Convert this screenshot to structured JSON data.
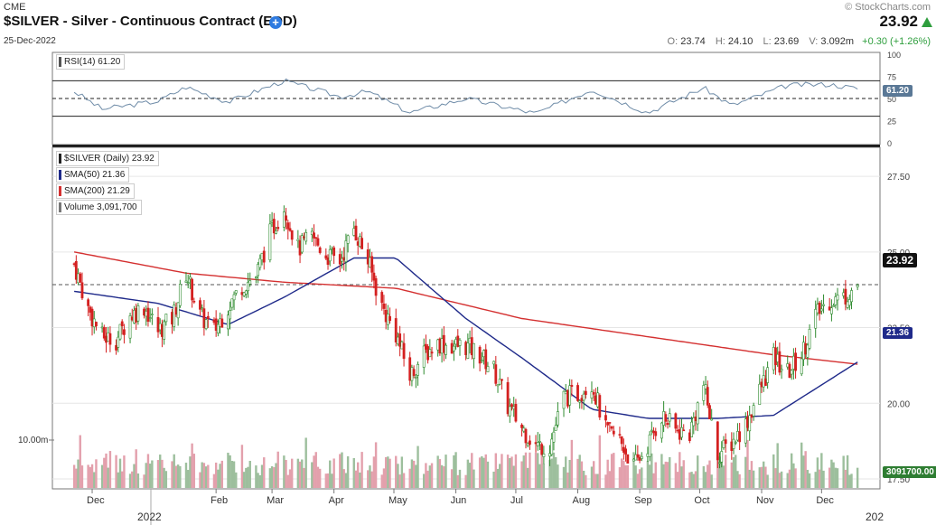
{
  "header": {
    "exchange": "CME",
    "watermark": "© StockCharts.com",
    "title": "$SILVER - Silver - Continuous Contract (EOD)",
    "date": "25-Dec-2022",
    "last_price": "23.92",
    "ohlc": {
      "o_label": "O:",
      "o": "23.74",
      "h_label": "H:",
      "h": "24.10",
      "l_label": "L:",
      "l": "23.69",
      "v_label": "V:",
      "v": "3.092m",
      "change": "+0.30 (+1.26%)"
    }
  },
  "legends": {
    "rsi": "RSI(14) 61.20",
    "price": "$SILVER (Daily) 23.92",
    "sma50": "SMA(50) 21.36",
    "sma200": "SMA(200) 21.29",
    "volume": "Volume 3,091,700"
  },
  "value_boxes": {
    "rsi": "61.20",
    "price": "23.92",
    "sma50": "21.36",
    "volume": "3091700.00"
  },
  "colors": {
    "up": "#2e8b2e",
    "down": "#d42020",
    "sma50": "#1f2a8a",
    "sma200": "#d43030",
    "rsi_line": "#6f8ca8",
    "vol_up": "#9dbf9d",
    "vol_down": "#e3a0ac"
  },
  "chart_data": {
    "type": "candlestick",
    "title": "$SILVER - Silver - Continuous Contract (EOD)",
    "price_axis": {
      "ticks": [
        17.5,
        20.0,
        22.5,
        25.0,
        27.5
      ],
      "tick_labels": [
        "17.50",
        "20.00",
        "22.50",
        "25.00",
        "27.50"
      ],
      "range": [
        17.2,
        28.4
      ]
    },
    "rsi_axis": {
      "ticks": [
        0,
        25,
        30,
        50,
        70,
        75,
        100
      ],
      "tick_labels": [
        "0",
        "25",
        "",
        "50",
        "",
        "75",
        "100"
      ],
      "overbought": 70,
      "oversold": 30
    },
    "volume_axis": {
      "label": "10.00m"
    },
    "x_axis": {
      "months": [
        "Dec",
        "Feb",
        "Mar",
        "Apr",
        "May",
        "Jun",
        "Jul",
        "Aug",
        "Sep",
        "Oct",
        "Nov",
        "Dec"
      ],
      "years": [
        "2022",
        "202"
      ]
    },
    "series": {
      "close": [
        {
          "date": "2021-11-22",
          "value": 24.6
        },
        {
          "date": "2021-11-29",
          "value": 23.1
        },
        {
          "date": "2021-12-06",
          "value": 22.2
        },
        {
          "date": "2021-12-13",
          "value": 22.1
        },
        {
          "date": "2021-12-20",
          "value": 22.9
        },
        {
          "date": "2021-12-27",
          "value": 23.2
        },
        {
          "date": "2022-01-03",
          "value": 22.4
        },
        {
          "date": "2022-01-10",
          "value": 22.8
        },
        {
          "date": "2022-01-17",
          "value": 24.3
        },
        {
          "date": "2022-01-24",
          "value": 22.9
        },
        {
          "date": "2022-01-31",
          "value": 22.4
        },
        {
          "date": "2022-02-07",
          "value": 23.2
        },
        {
          "date": "2022-02-14",
          "value": 23.9
        },
        {
          "date": "2022-02-21",
          "value": 24.2
        },
        {
          "date": "2022-02-28",
          "value": 25.6
        },
        {
          "date": "2022-03-07",
          "value": 26.5
        },
        {
          "date": "2022-03-14",
          "value": 25.1
        },
        {
          "date": "2022-03-21",
          "value": 25.5
        },
        {
          "date": "2022-03-28",
          "value": 24.9
        },
        {
          "date": "2022-04-04",
          "value": 24.7
        },
        {
          "date": "2022-04-11",
          "value": 25.8
        },
        {
          "date": "2022-04-18",
          "value": 24.7
        },
        {
          "date": "2022-04-25",
          "value": 23.2
        },
        {
          "date": "2022-05-02",
          "value": 22.3
        },
        {
          "date": "2022-05-09",
          "value": 20.9
        },
        {
          "date": "2022-05-16",
          "value": 21.6
        },
        {
          "date": "2022-05-23",
          "value": 22.0
        },
        {
          "date": "2022-05-30",
          "value": 21.9
        },
        {
          "date": "2022-06-06",
          "value": 21.9
        },
        {
          "date": "2022-06-13",
          "value": 21.6
        },
        {
          "date": "2022-06-20",
          "value": 21.1
        },
        {
          "date": "2022-06-27",
          "value": 19.9
        },
        {
          "date": "2022-07-04",
          "value": 19.2
        },
        {
          "date": "2022-07-11",
          "value": 18.6
        },
        {
          "date": "2022-07-18",
          "value": 18.6
        },
        {
          "date": "2022-07-25",
          "value": 20.2
        },
        {
          "date": "2022-08-01",
          "value": 20.3
        },
        {
          "date": "2022-08-08",
          "value": 20.7
        },
        {
          "date": "2022-08-15",
          "value": 19.1
        },
        {
          "date": "2022-08-22",
          "value": 18.8
        },
        {
          "date": "2022-08-29",
          "value": 17.9
        },
        {
          "date": "2022-09-05",
          "value": 18.6
        },
        {
          "date": "2022-09-12",
          "value": 19.6
        },
        {
          "date": "2022-09-19",
          "value": 19.1
        },
        {
          "date": "2022-09-26",
          "value": 19.0
        },
        {
          "date": "2022-10-03",
          "value": 20.6
        },
        {
          "date": "2022-10-10",
          "value": 18.3
        },
        {
          "date": "2022-10-17",
          "value": 18.7
        },
        {
          "date": "2022-10-24",
          "value": 19.3
        },
        {
          "date": "2022-10-31",
          "value": 20.4
        },
        {
          "date": "2022-11-07",
          "value": 21.5
        },
        {
          "date": "2022-11-14",
          "value": 21.0
        },
        {
          "date": "2022-11-21",
          "value": 21.6
        },
        {
          "date": "2022-11-28",
          "value": 22.9
        },
        {
          "date": "2022-12-05",
          "value": 23.4
        },
        {
          "date": "2022-12-12",
          "value": 23.5
        },
        {
          "date": "2022-12-19",
          "value": 23.9
        }
      ],
      "sma50": [
        {
          "date": "2021-11-22",
          "value": 23.7
        },
        {
          "date": "2022-01-03",
          "value": 23.3
        },
        {
          "date": "2022-02-07",
          "value": 22.6
        },
        {
          "date": "2022-03-07",
          "value": 23.5
        },
        {
          "date": "2022-04-11",
          "value": 24.8
        },
        {
          "date": "2022-05-02",
          "value": 24.8
        },
        {
          "date": "2022-06-06",
          "value": 22.8
        },
        {
          "date": "2022-07-04",
          "value": 21.5
        },
        {
          "date": "2022-08-08",
          "value": 19.8
        },
        {
          "date": "2022-09-05",
          "value": 19.5
        },
        {
          "date": "2022-10-10",
          "value": 19.5
        },
        {
          "date": "2022-11-07",
          "value": 19.6
        },
        {
          "date": "2022-12-19",
          "value": 21.36
        }
      ],
      "sma200": [
        {
          "date": "2021-11-22",
          "value": 25.0
        },
        {
          "date": "2022-01-17",
          "value": 24.3
        },
        {
          "date": "2022-03-07",
          "value": 24.0
        },
        {
          "date": "2022-05-02",
          "value": 23.8
        },
        {
          "date": "2022-07-04",
          "value": 22.8
        },
        {
          "date": "2022-09-05",
          "value": 22.2
        },
        {
          "date": "2022-11-07",
          "value": 21.6
        },
        {
          "date": "2022-12-19",
          "value": 21.29
        }
      ],
      "rsi": [
        {
          "date": "2021-11-22",
          "value": 58
        },
        {
          "date": "2021-12-06",
          "value": 38
        },
        {
          "date": "2022-01-03",
          "value": 47
        },
        {
          "date": "2022-01-17",
          "value": 63
        },
        {
          "date": "2022-02-07",
          "value": 46
        },
        {
          "date": "2022-03-07",
          "value": 70
        },
        {
          "date": "2022-04-04",
          "value": 52
        },
        {
          "date": "2022-04-18",
          "value": 58
        },
        {
          "date": "2022-05-09",
          "value": 34
        },
        {
          "date": "2022-06-06",
          "value": 50
        },
        {
          "date": "2022-07-11",
          "value": 33
        },
        {
          "date": "2022-08-08",
          "value": 60
        },
        {
          "date": "2022-09-05",
          "value": 34
        },
        {
          "date": "2022-10-03",
          "value": 62
        },
        {
          "date": "2022-10-17",
          "value": 42
        },
        {
          "date": "2022-11-14",
          "value": 65
        },
        {
          "date": "2022-12-05",
          "value": 66
        },
        {
          "date": "2022-12-19",
          "value": 61.2
        }
      ]
    }
  }
}
